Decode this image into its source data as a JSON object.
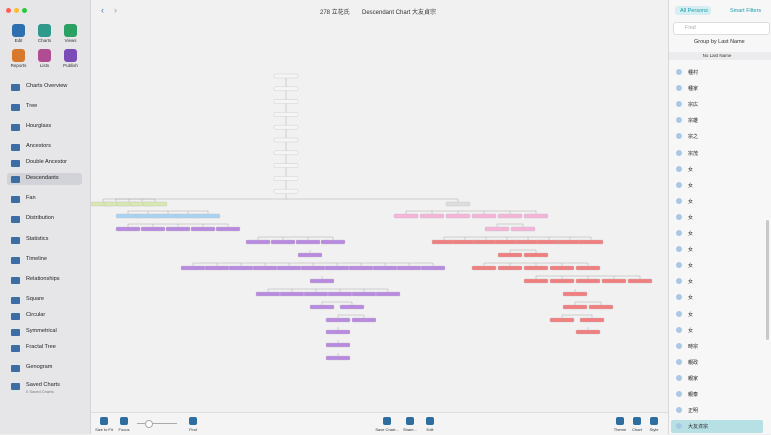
{
  "toolbar": {
    "top": [
      "Edit",
      "Charts",
      "Views"
    ],
    "bottom": [
      "Reports",
      "Lists",
      "Publish"
    ]
  },
  "sidebar": {
    "items": [
      "Charts Overview",
      "Tree",
      "Hourglass",
      "Ancestors",
      "Double Ancestor",
      "Descendants",
      "Fan",
      "Distribution",
      "Statistics",
      "Timeline",
      "Relationships",
      "Square",
      "Circular",
      "Symmetrical",
      "Fractal Tree",
      "Genogram",
      "Saved Charts"
    ],
    "selected": "Descendants",
    "saved_count": "0 Saved Charts"
  },
  "header": {
    "count": "278 立花氏",
    "title": "Descendant Chart 大友貞宗"
  },
  "bottom_toolbar": {
    "left": [
      "Size to Fit",
      "Focus",
      "Find"
    ],
    "middle": [
      "Save Chart...",
      "Share...",
      "Edit"
    ],
    "right": [
      "Theme",
      "Chart",
      "Style"
    ]
  },
  "persons": {
    "tabs": [
      "All Persons",
      "Smart Filters"
    ],
    "search": "Find",
    "group": "Group by Last Name",
    "section": "No Last Name",
    "names": [
      "種村",
      "種家",
      "宗広",
      "宗雄",
      "宗之",
      "宗茂",
      "女",
      "女",
      "女",
      "女",
      "女",
      "女",
      "女",
      "女",
      "女",
      "女",
      "女",
      "時宗",
      "親政",
      "親家",
      "親泰",
      "正明",
      "大友貞宗"
    ],
    "selected": "大友貞宗"
  }
}
